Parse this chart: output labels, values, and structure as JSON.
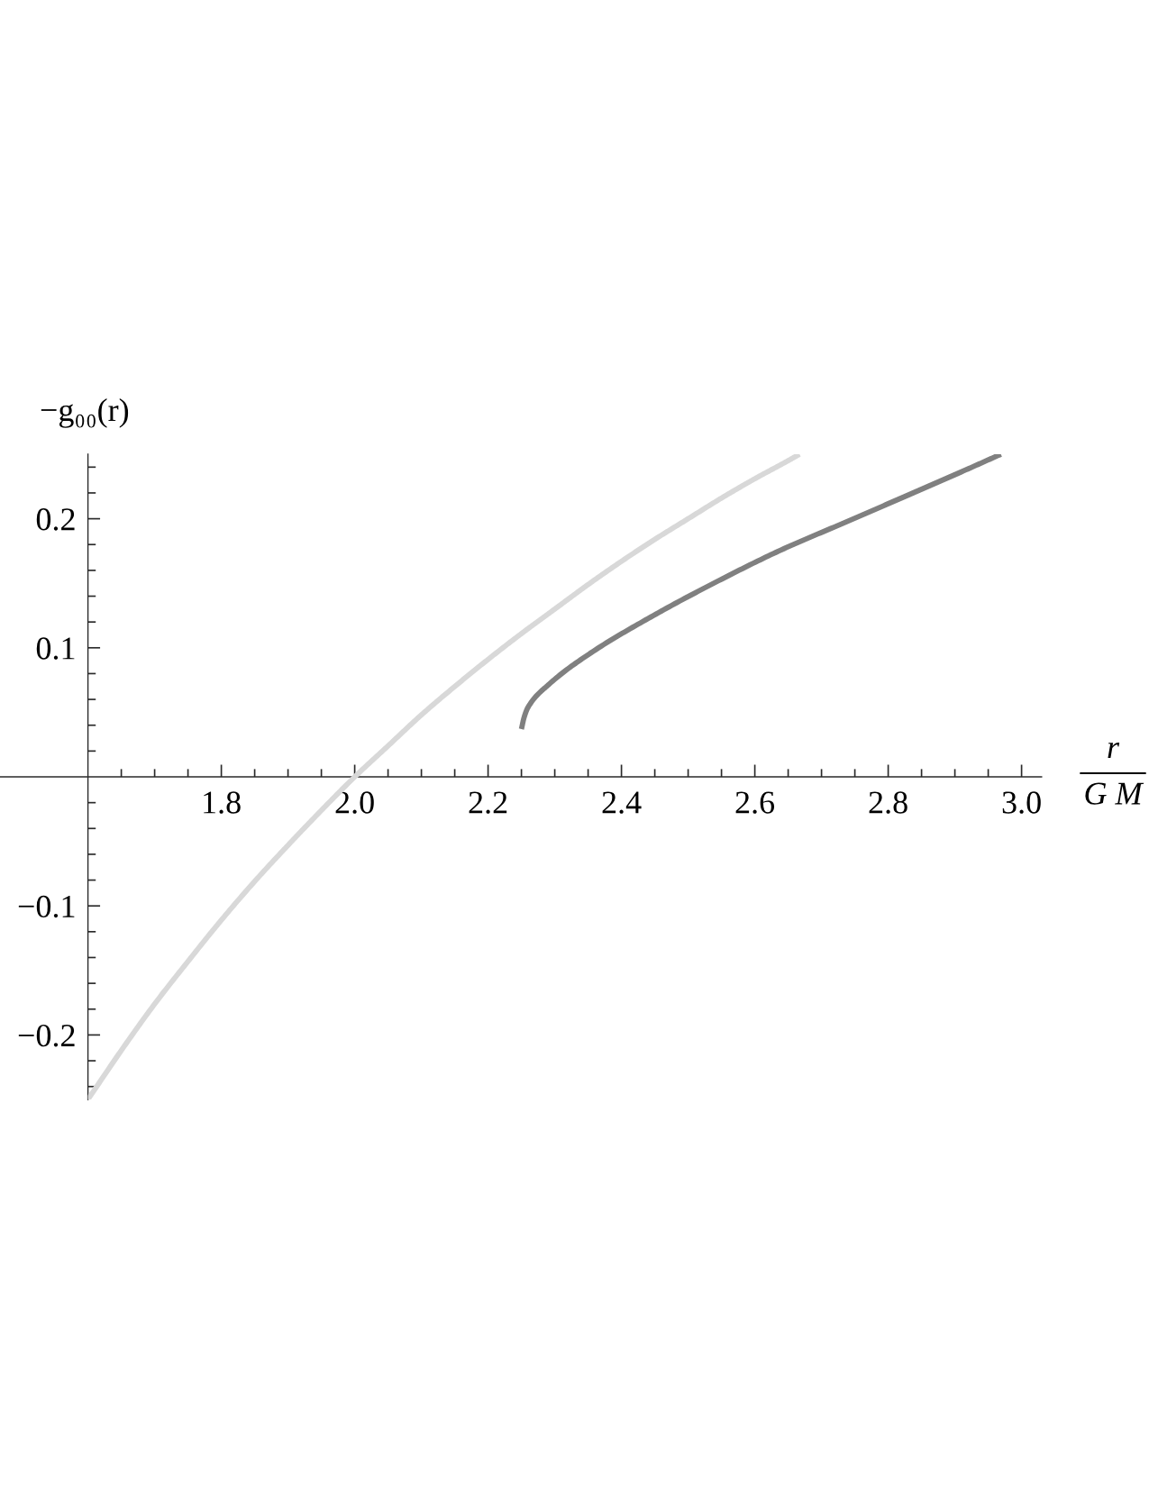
{
  "chart_data": {
    "type": "line",
    "xlabel": "r\nG M",
    "ylabel": "−g₀₀(r)",
    "xlim": [
      1.6,
      3.03
    ],
    "ylim": [
      -0.25,
      0.25
    ],
    "xticks": [
      {
        "value": 1.65,
        "label": null
      },
      {
        "value": 1.7,
        "label": null
      },
      {
        "value": 1.75,
        "label": null
      },
      1.8,
      {
        "value": 1.85,
        "label": null
      },
      {
        "value": 1.9,
        "label": null
      },
      {
        "value": 1.95,
        "label": null
      },
      {
        "value": 2,
        "label": "2.0"
      },
      {
        "value": 2.05,
        "label": null
      },
      {
        "value": 2.1,
        "label": null
      },
      {
        "value": 2.15,
        "label": null
      },
      2.2,
      {
        "value": 2.25,
        "label": null
      },
      {
        "value": 2.3,
        "label": null
      },
      {
        "value": 2.35,
        "label": null
      },
      2.4,
      {
        "value": 2.45,
        "label": null
      },
      {
        "value": 2.5,
        "label": null
      },
      {
        "value": 2.55,
        "label": null
      },
      2.6,
      {
        "value": 2.65,
        "label": null
      },
      {
        "value": 2.7,
        "label": null
      },
      {
        "value": 2.75,
        "label": null
      },
      2.8,
      {
        "value": 2.85,
        "label": null
      },
      {
        "value": 2.9,
        "label": null
      },
      {
        "value": 2.95,
        "label": null
      },
      {
        "value": 3,
        "label": "3.0"
      }
    ],
    "yticks": [
      {
        "value": -0.24,
        "label": null
      },
      {
        "value": -0.22,
        "label": null
      },
      {
        "value": -0.2,
        "label": "−0.2"
      },
      {
        "value": -0.18,
        "label": null
      },
      {
        "value": -0.16,
        "label": null
      },
      {
        "value": -0.14,
        "label": null
      },
      {
        "value": -0.12,
        "label": null
      },
      {
        "value": -0.1,
        "label": "−0.1"
      },
      {
        "value": -0.08,
        "label": null
      },
      {
        "value": -0.06,
        "label": null
      },
      {
        "value": -0.04,
        "label": null
      },
      {
        "value": -0.02,
        "label": null
      },
      {
        "value": 0.02,
        "label": null
      },
      {
        "value": 0.04,
        "label": null
      },
      {
        "value": 0.06,
        "label": null
      },
      {
        "value": 0.08,
        "label": null
      },
      0.1,
      {
        "value": 0.12,
        "label": null
      },
      {
        "value": 0.14,
        "label": null
      },
      {
        "value": 0.16,
        "label": null
      },
      {
        "value": 0.18,
        "label": null
      },
      0.2,
      {
        "value": 0.22,
        "label": null
      },
      {
        "value": 0.24,
        "label": null
      }
    ],
    "series": [
      {
        "color": "#d8d8d8",
        "x": [
          1.6,
          1.65,
          1.7,
          1.75,
          1.8,
          1.85,
          1.9,
          1.95,
          2.0,
          2.05,
          2.1,
          2.15,
          2.2,
          2.25,
          2.3,
          2.35,
          2.4,
          2.45,
          2.5,
          2.55,
          2.6,
          2.65,
          2.667
        ],
        "values": [
          -0.25,
          -0.212,
          -0.176,
          -0.143,
          -0.111,
          -0.081,
          -0.053,
          -0.026,
          0.0,
          0.024,
          0.048,
          0.07,
          0.091,
          0.111,
          0.13,
          0.149,
          0.167,
          0.184,
          0.2,
          0.216,
          0.231,
          0.245,
          0.25
        ]
      },
      {
        "color": "#808080",
        "x": [
          2.25,
          2.254,
          2.26,
          2.292,
          2.354,
          2.448,
          2.542,
          2.636,
          2.73,
          2.824,
          2.917,
          2.969
        ],
        "values": [
          0.037,
          0.046,
          0.054,
          0.072,
          0.096,
          0.125,
          0.151,
          0.175,
          0.196,
          0.217,
          0.238,
          0.25
        ]
      }
    ]
  }
}
